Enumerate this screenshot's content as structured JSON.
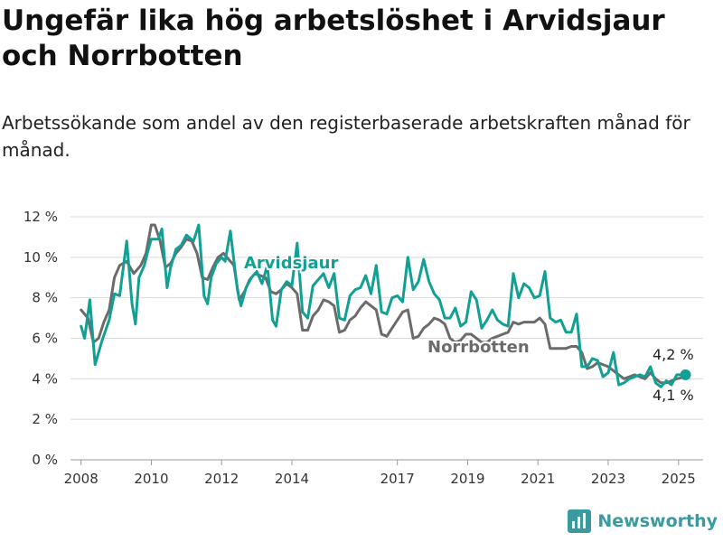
{
  "title": "Ungefär lika hög arbetslöshet i Arvidsjaur och Norrbotten",
  "subtitle": "Arbetssökande som andel av den registerbaserade arbetskraften månad för månad.",
  "brand": {
    "name": "Newsworthy",
    "color": "#3a9aa0"
  },
  "chart_data": {
    "type": "line",
    "title": "Ungefär lika hög arbetslöshet i Arvidsjaur och Norrbotten",
    "subtitle": "Arbetssökande som andel av den registerbaserade arbetskraften månad för månad.",
    "xlabel": "",
    "ylabel": "",
    "ylim": [
      0,
      12
    ],
    "yticks": [
      0,
      2,
      4,
      6,
      8,
      10,
      12
    ],
    "ytick_labels": [
      "0 %",
      "2 %",
      "4 %",
      "6 %",
      "8 %",
      "10 %",
      "12 %"
    ],
    "xlim": [
      2007.7,
      2025.7
    ],
    "xticks": [
      2008,
      2010,
      2012,
      2014,
      2017,
      2019,
      2021,
      2023,
      2025
    ],
    "xtick_labels": [
      "2008",
      "2010",
      "2012",
      "2014",
      "2017",
      "2019",
      "2021",
      "2023",
      "2025"
    ],
    "grid": true,
    "legend": "direct-labels",
    "series": [
      {
        "name": "Arvidsjaur",
        "color": "#12a094",
        "end_label": "4,2 %",
        "points": [
          [
            2008.0,
            6.6
          ],
          [
            2008.1,
            6.0
          ],
          [
            2008.25,
            7.9
          ],
          [
            2008.4,
            4.7
          ],
          [
            2008.6,
            5.9
          ],
          [
            2008.8,
            6.9
          ],
          [
            2008.95,
            8.2
          ],
          [
            2009.1,
            8.1
          ],
          [
            2009.3,
            10.8
          ],
          [
            2009.45,
            7.7
          ],
          [
            2009.55,
            6.7
          ],
          [
            2009.65,
            9.0
          ],
          [
            2009.8,
            9.6
          ],
          [
            2009.9,
            10.3
          ],
          [
            2010.0,
            10.9
          ],
          [
            2010.2,
            10.9
          ],
          [
            2010.3,
            11.4
          ],
          [
            2010.45,
            8.5
          ],
          [
            2010.55,
            9.5
          ],
          [
            2010.7,
            10.4
          ],
          [
            2010.85,
            10.6
          ],
          [
            2011.0,
            11.1
          ],
          [
            2011.2,
            10.8
          ],
          [
            2011.35,
            11.6
          ],
          [
            2011.5,
            8.1
          ],
          [
            2011.6,
            7.7
          ],
          [
            2011.7,
            9.0
          ],
          [
            2011.85,
            9.7
          ],
          [
            2012.0,
            10.0
          ],
          [
            2012.1,
            9.8
          ],
          [
            2012.25,
            11.3
          ],
          [
            2012.45,
            8.4
          ],
          [
            2012.55,
            7.6
          ],
          [
            2012.7,
            8.5
          ],
          [
            2012.85,
            9.0
          ],
          [
            2013.0,
            9.3
          ],
          [
            2013.15,
            8.7
          ],
          [
            2013.3,
            9.6
          ],
          [
            2013.45,
            6.9
          ],
          [
            2013.55,
            6.6
          ],
          [
            2013.7,
            8.4
          ],
          [
            2013.85,
            8.8
          ],
          [
            2014.0,
            8.6
          ],
          [
            2014.15,
            10.7
          ],
          [
            2014.3,
            7.3
          ],
          [
            2014.45,
            7.0
          ],
          [
            2014.6,
            8.6
          ],
          [
            2014.75,
            8.9
          ],
          [
            2014.9,
            9.2
          ],
          [
            2015.05,
            8.5
          ],
          [
            2015.2,
            9.2
          ],
          [
            2015.35,
            7.0
          ],
          [
            2015.5,
            6.9
          ],
          [
            2015.65,
            8.1
          ],
          [
            2015.8,
            8.4
          ],
          [
            2015.95,
            8.5
          ],
          [
            2016.1,
            9.1
          ],
          [
            2016.25,
            8.2
          ],
          [
            2016.4,
            9.6
          ],
          [
            2016.55,
            7.3
          ],
          [
            2016.7,
            7.2
          ],
          [
            2016.85,
            8.0
          ],
          [
            2017.0,
            8.1
          ],
          [
            2017.15,
            7.8
          ],
          [
            2017.3,
            10.0
          ],
          [
            2017.45,
            8.4
          ],
          [
            2017.6,
            8.8
          ],
          [
            2017.75,
            9.9
          ],
          [
            2017.9,
            8.8
          ],
          [
            2018.05,
            8.2
          ],
          [
            2018.2,
            7.9
          ],
          [
            2018.35,
            7.0
          ],
          [
            2018.5,
            7.0
          ],
          [
            2018.65,
            7.5
          ],
          [
            2018.8,
            6.6
          ],
          [
            2018.95,
            6.8
          ],
          [
            2019.1,
            8.3
          ],
          [
            2019.25,
            7.9
          ],
          [
            2019.4,
            6.5
          ],
          [
            2019.55,
            6.9
          ],
          [
            2019.7,
            7.4
          ],
          [
            2019.85,
            6.9
          ],
          [
            2020.0,
            6.7
          ],
          [
            2020.15,
            6.6
          ],
          [
            2020.3,
            9.2
          ],
          [
            2020.45,
            8.0
          ],
          [
            2020.6,
            8.7
          ],
          [
            2020.75,
            8.5
          ],
          [
            2020.9,
            8.0
          ],
          [
            2021.05,
            8.1
          ],
          [
            2021.2,
            9.3
          ],
          [
            2021.35,
            7.0
          ],
          [
            2021.5,
            6.8
          ],
          [
            2021.65,
            6.9
          ],
          [
            2021.8,
            6.3
          ],
          [
            2021.95,
            6.3
          ],
          [
            2022.1,
            7.2
          ],
          [
            2022.25,
            4.6
          ],
          [
            2022.4,
            4.6
          ],
          [
            2022.55,
            5.0
          ],
          [
            2022.7,
            4.9
          ],
          [
            2022.85,
            4.1
          ],
          [
            2023.0,
            4.3
          ],
          [
            2023.15,
            5.3
          ],
          [
            2023.3,
            3.7
          ],
          [
            2023.45,
            3.8
          ],
          [
            2023.6,
            4.0
          ],
          [
            2023.75,
            4.1
          ],
          [
            2023.9,
            4.2
          ],
          [
            2024.05,
            4.1
          ],
          [
            2024.2,
            4.6
          ],
          [
            2024.35,
            3.8
          ],
          [
            2024.5,
            3.6
          ],
          [
            2024.65,
            3.9
          ],
          [
            2024.8,
            3.7
          ],
          [
            2024.95,
            4.2
          ],
          [
            2025.2,
            4.2
          ]
        ]
      },
      {
        "name": "Norrbotten",
        "color": "#6b6b6b",
        "end_label": "4,1 %",
        "points": [
          [
            2008.0,
            7.4
          ],
          [
            2008.2,
            7.0
          ],
          [
            2008.35,
            5.8
          ],
          [
            2008.5,
            6.0
          ],
          [
            2008.65,
            6.8
          ],
          [
            2008.8,
            7.4
          ],
          [
            2008.95,
            9.0
          ],
          [
            2009.1,
            9.6
          ],
          [
            2009.3,
            9.8
          ],
          [
            2009.5,
            9.2
          ],
          [
            2009.7,
            9.6
          ],
          [
            2009.85,
            10.2
          ],
          [
            2010.0,
            11.6
          ],
          [
            2010.1,
            11.6
          ],
          [
            2010.25,
            10.8
          ],
          [
            2010.4,
            9.5
          ],
          [
            2010.55,
            9.7
          ],
          [
            2010.7,
            10.2
          ],
          [
            2010.85,
            10.5
          ],
          [
            2011.0,
            10.9
          ],
          [
            2011.15,
            10.8
          ],
          [
            2011.3,
            10.2
          ],
          [
            2011.45,
            9.0
          ],
          [
            2011.6,
            8.9
          ],
          [
            2011.75,
            9.5
          ],
          [
            2011.9,
            10.0
          ],
          [
            2012.05,
            10.2
          ],
          [
            2012.2,
            9.9
          ],
          [
            2012.35,
            9.6
          ],
          [
            2012.5,
            7.9
          ],
          [
            2012.65,
            8.3
          ],
          [
            2012.8,
            8.9
          ],
          [
            2012.95,
            9.2
          ],
          [
            2013.1,
            9.1
          ],
          [
            2013.25,
            9.0
          ],
          [
            2013.4,
            8.3
          ],
          [
            2013.55,
            8.2
          ],
          [
            2013.7,
            8.4
          ],
          [
            2013.85,
            8.7
          ],
          [
            2014.0,
            8.5
          ],
          [
            2014.15,
            8.2
          ],
          [
            2014.3,
            6.4
          ],
          [
            2014.45,
            6.4
          ],
          [
            2014.6,
            7.1
          ],
          [
            2014.75,
            7.4
          ],
          [
            2014.9,
            7.9
          ],
          [
            2015.05,
            7.8
          ],
          [
            2015.2,
            7.6
          ],
          [
            2015.35,
            6.3
          ],
          [
            2015.5,
            6.4
          ],
          [
            2015.65,
            6.9
          ],
          [
            2015.8,
            7.1
          ],
          [
            2015.95,
            7.5
          ],
          [
            2016.1,
            7.8
          ],
          [
            2016.25,
            7.6
          ],
          [
            2016.4,
            7.4
          ],
          [
            2016.55,
            6.2
          ],
          [
            2016.7,
            6.1
          ],
          [
            2016.85,
            6.5
          ],
          [
            2017.0,
            6.9
          ],
          [
            2017.15,
            7.3
          ],
          [
            2017.3,
            7.4
          ],
          [
            2017.45,
            6.0
          ],
          [
            2017.6,
            6.1
          ],
          [
            2017.75,
            6.5
          ],
          [
            2017.9,
            6.7
          ],
          [
            2018.05,
            7.0
          ],
          [
            2018.2,
            6.9
          ],
          [
            2018.35,
            6.7
          ],
          [
            2018.5,
            6.0
          ],
          [
            2018.65,
            5.8
          ],
          [
            2018.8,
            5.9
          ],
          [
            2018.95,
            6.2
          ],
          [
            2019.1,
            6.2
          ],
          [
            2019.25,
            6.0
          ],
          [
            2019.4,
            5.8
          ],
          [
            2019.55,
            5.8
          ],
          [
            2019.7,
            6.0
          ],
          [
            2019.85,
            6.1
          ],
          [
            2020.0,
            6.2
          ],
          [
            2020.15,
            6.3
          ],
          [
            2020.3,
            6.8
          ],
          [
            2020.45,
            6.7
          ],
          [
            2020.6,
            6.8
          ],
          [
            2020.75,
            6.8
          ],
          [
            2020.9,
            6.8
          ],
          [
            2021.05,
            7.0
          ],
          [
            2021.2,
            6.7
          ],
          [
            2021.35,
            5.5
          ],
          [
            2021.5,
            5.5
          ],
          [
            2021.65,
            5.5
          ],
          [
            2021.8,
            5.5
          ],
          [
            2021.95,
            5.6
          ],
          [
            2022.1,
            5.6
          ],
          [
            2022.25,
            5.3
          ],
          [
            2022.4,
            4.5
          ],
          [
            2022.55,
            4.6
          ],
          [
            2022.7,
            4.8
          ],
          [
            2022.85,
            4.7
          ],
          [
            2023.0,
            4.6
          ],
          [
            2023.15,
            4.4
          ],
          [
            2023.3,
            4.2
          ],
          [
            2023.45,
            4.0
          ],
          [
            2023.6,
            4.1
          ],
          [
            2023.75,
            4.2
          ],
          [
            2023.9,
            4.1
          ],
          [
            2024.05,
            4.0
          ],
          [
            2024.2,
            4.3
          ],
          [
            2024.35,
            4.0
          ],
          [
            2024.5,
            3.8
          ],
          [
            2024.65,
            3.8
          ],
          [
            2024.8,
            3.9
          ],
          [
            2024.95,
            4.0
          ],
          [
            2025.2,
            4.1
          ]
        ]
      }
    ]
  }
}
